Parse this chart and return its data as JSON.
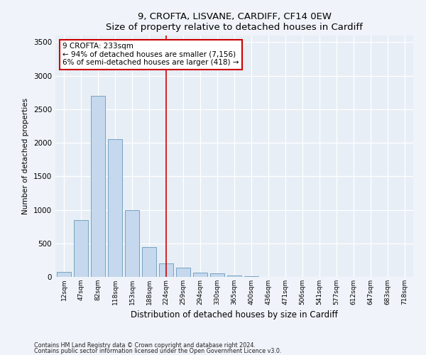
{
  "title1": "9, CROFTA, LISVANE, CARDIFF, CF14 0EW",
  "title2": "Size of property relative to detached houses in Cardiff",
  "xlabel": "Distribution of detached houses by size in Cardiff",
  "ylabel": "Number of detached properties",
  "categories": [
    "12sqm",
    "47sqm",
    "82sqm",
    "118sqm",
    "153sqm",
    "188sqm",
    "224sqm",
    "259sqm",
    "294sqm",
    "330sqm",
    "365sqm",
    "400sqm",
    "436sqm",
    "471sqm",
    "506sqm",
    "541sqm",
    "577sqm",
    "612sqm",
    "647sqm",
    "683sqm",
    "718sqm"
  ],
  "values": [
    75,
    850,
    2700,
    2050,
    1000,
    450,
    200,
    140,
    65,
    55,
    20,
    10,
    5,
    3,
    2,
    1,
    1,
    1,
    0,
    0,
    0
  ],
  "bar_color": "#c5d8ed",
  "bar_edge_color": "#6699bb",
  "vline_x": 6,
  "vline_color": "#cc0000",
  "annotation_text": "9 CROFTA: 233sqm\n← 94% of detached houses are smaller (7,156)\n6% of semi-detached houses are larger (418) →",
  "annotation_box_facecolor": "#ffffff",
  "annotation_box_edgecolor": "#cc0000",
  "ylim": [
    0,
    3600
  ],
  "yticks": [
    0,
    500,
    1000,
    1500,
    2000,
    2500,
    3000,
    3500
  ],
  "fig_bg_color": "#f0f4fa",
  "plot_bg_color": "#e8eef6",
  "footnote1": "Contains HM Land Registry data © Crown copyright and database right 2024.",
  "footnote2": "Contains public sector information licensed under the Open Government Licence v3.0."
}
